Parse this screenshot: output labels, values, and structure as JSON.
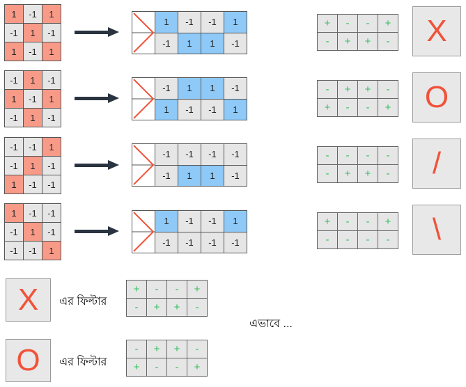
{
  "rows": [
    {
      "input": [
        [
          1,
          -1,
          1
        ],
        [
          -1,
          1,
          -1
        ],
        [
          1,
          -1,
          1
        ]
      ],
      "output": [
        [
          1,
          -1,
          -1,
          1
        ],
        [
          -1,
          1,
          1,
          -1
        ]
      ],
      "filter": [
        [
          "+",
          "-",
          "-",
          "+"
        ],
        [
          "-",
          "+",
          "+",
          "-"
        ]
      ],
      "symbol": "X"
    },
    {
      "input": [
        [
          -1,
          1,
          -1
        ],
        [
          1,
          -1,
          1
        ],
        [
          -1,
          1,
          -1
        ]
      ],
      "output": [
        [
          -1,
          1,
          1,
          -1
        ],
        [
          1,
          -1,
          -1,
          1
        ]
      ],
      "filter": [
        [
          "-",
          "+",
          "+",
          "-"
        ],
        [
          "+",
          "-",
          "-",
          "+"
        ]
      ],
      "symbol": "O"
    },
    {
      "input": [
        [
          -1,
          -1,
          1
        ],
        [
          -1,
          1,
          -1
        ],
        [
          1,
          -1,
          -1
        ]
      ],
      "output": [
        [
          -1,
          -1,
          -1,
          -1
        ],
        [
          -1,
          1,
          1,
          -1
        ]
      ],
      "filter": [
        [
          "-",
          "-",
          "-",
          "-"
        ],
        [
          "-",
          "+",
          "+",
          "-"
        ]
      ],
      "symbol": "/"
    },
    {
      "input": [
        [
          1,
          -1,
          -1
        ],
        [
          -1,
          1,
          -1
        ],
        [
          -1,
          -1,
          1
        ]
      ],
      "output": [
        [
          1,
          -1,
          -1,
          1
        ],
        [
          -1,
          -1,
          -1,
          -1
        ]
      ],
      "filter": [
        [
          "+",
          "-",
          "-",
          "+"
        ],
        [
          "-",
          "-",
          "-",
          "-"
        ]
      ],
      "symbol": "\\"
    }
  ],
  "bottom": [
    {
      "symbol": "X",
      "label": "এর ফিল্টার",
      "filter": [
        [
          "+",
          "-",
          "-",
          "+"
        ],
        [
          "-",
          "+",
          "+",
          "-"
        ]
      ]
    },
    {
      "symbol": "O",
      "label": "এর ফিল্টার",
      "filter": [
        [
          "-",
          "+",
          "+",
          "-"
        ],
        [
          "+",
          "-",
          "-",
          "+"
        ]
      ]
    }
  ],
  "continuation": "এভাবে ...",
  "colors": {
    "input_on": "#f79a88",
    "output_on": "#8ec9f7",
    "cell_off": "#e6e6e6",
    "plus_minus": "#2fbf5c",
    "symbol": "#f0533a",
    "arrow": "#2a3440"
  }
}
